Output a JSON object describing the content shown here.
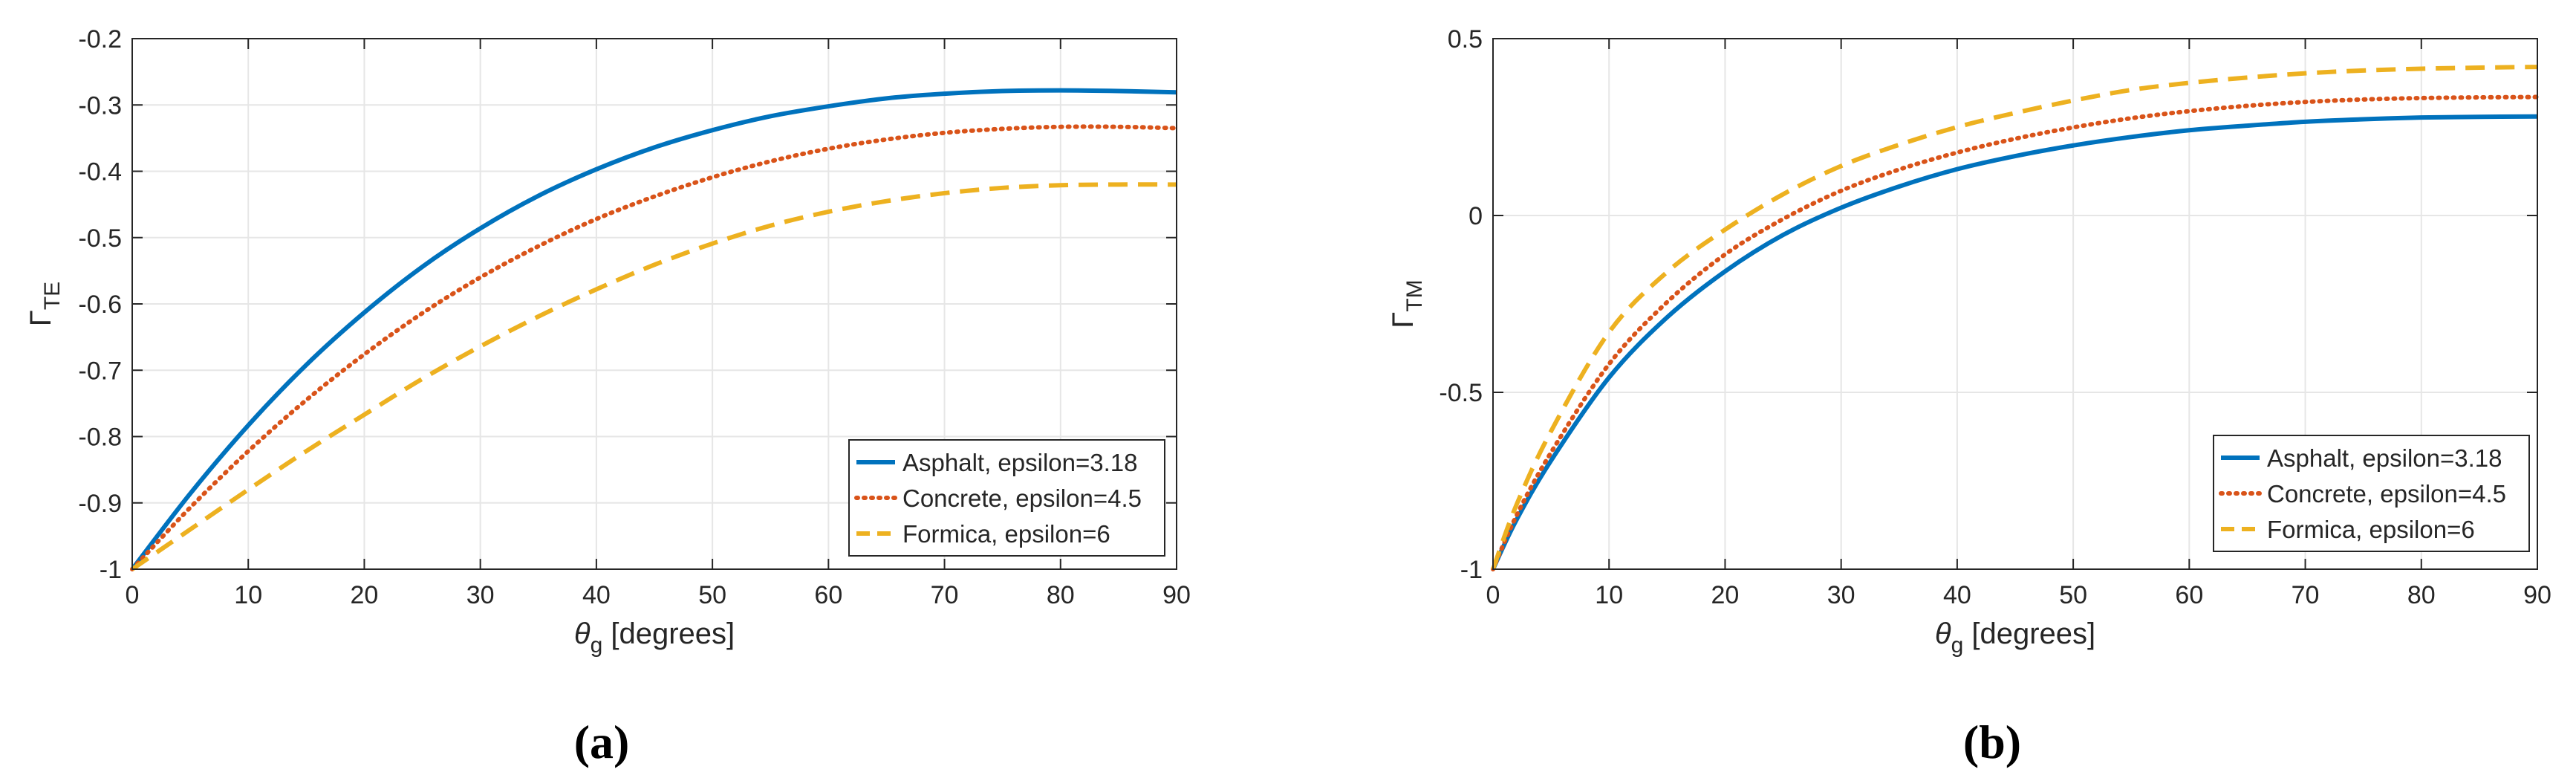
{
  "figure": {
    "panel_captions": [
      "(a)",
      "(b)"
    ]
  },
  "chart_data": [
    {
      "type": "line",
      "panel": "(a)",
      "title": "",
      "xlabel": {
        "base": "θ",
        "sub": "g",
        "suffix": " [degrees]"
      },
      "ylabel": {
        "base": "Γ",
        "sub": "TE"
      },
      "xlim": [
        0,
        90
      ],
      "ylim": [
        -1,
        -0.2
      ],
      "xticks": [
        0,
        10,
        20,
        30,
        40,
        50,
        60,
        70,
        80,
        90
      ],
      "yticks": [
        -1,
        -0.9,
        -0.8,
        -0.7,
        -0.6,
        -0.5,
        -0.4,
        -0.3,
        -0.2
      ],
      "xtick_labels": [
        "0",
        "10",
        "20",
        "30",
        "40",
        "50",
        "60",
        "70",
        "80",
        "90"
      ],
      "ytick_labels": [
        "-1",
        "-0.9",
        "-0.8",
        "-0.7",
        "-0.6",
        "-0.5",
        "-0.4",
        "-0.3",
        "-0.2"
      ],
      "grid": true,
      "legend_position": "bottom-right",
      "x": [
        0,
        5,
        10,
        15,
        20,
        25,
        30,
        35,
        40,
        45,
        50,
        55,
        60,
        65,
        70,
        75,
        80,
        85,
        90
      ],
      "series": [
        {
          "name": "Asphalt, epsilon=3.18",
          "color": "#0072BD",
          "style": "solid",
          "values": [
            -1.0,
            -0.886,
            -0.783,
            -0.692,
            -0.613,
            -0.544,
            -0.486,
            -0.437,
            -0.397,
            -0.364,
            -0.338,
            -0.317,
            -0.302,
            -0.29,
            -0.283,
            -0.279,
            -0.278,
            -0.279,
            -0.281
          ]
        },
        {
          "name": "Concrete, epsilon=4.5",
          "color": "#D95319",
          "style": "dotted",
          "values": [
            -1.0,
            -0.907,
            -0.822,
            -0.745,
            -0.676,
            -0.614,
            -0.56,
            -0.513,
            -0.472,
            -0.438,
            -0.409,
            -0.385,
            -0.366,
            -0.352,
            -0.342,
            -0.336,
            -0.333,
            -0.333,
            -0.335
          ]
        },
        {
          "name": "Formica, epsilon=6",
          "color": "#EDB120",
          "style": "dashed",
          "values": [
            -1.0,
            -0.94,
            -0.88,
            -0.822,
            -0.767,
            -0.713,
            -0.664,
            -0.619,
            -0.578,
            -0.541,
            -0.509,
            -0.482,
            -0.461,
            -0.445,
            -0.433,
            -0.425,
            -0.421,
            -0.42,
            -0.42
          ]
        }
      ]
    },
    {
      "type": "line",
      "panel": "(b)",
      "title": "",
      "xlabel": {
        "base": "θ",
        "sub": "g",
        "suffix": " [degrees]"
      },
      "ylabel": {
        "base": "Γ",
        "sub": "TM"
      },
      "xlim": [
        0,
        90
      ],
      "ylim": [
        -1,
        0.5
      ],
      "xticks": [
        0,
        10,
        20,
        30,
        40,
        50,
        60,
        70,
        80,
        90
      ],
      "yticks": [
        -1,
        -0.5,
        0,
        0.5
      ],
      "xtick_labels": [
        "0",
        "10",
        "20",
        "30",
        "40",
        "50",
        "60",
        "70",
        "80",
        "90"
      ],
      "ytick_labels": [
        "-1",
        "-0.5",
        "0",
        "0.5"
      ],
      "grid": true,
      "legend_position": "bottom-right",
      "x": [
        0,
        2,
        5,
        10,
        15,
        20,
        25,
        30,
        35,
        40,
        45,
        50,
        55,
        60,
        65,
        70,
        75,
        80,
        85,
        90
      ],
      "series": [
        {
          "name": "Asphalt, epsilon=3.18",
          "color": "#0072BD",
          "style": "solid",
          "values": [
            -1.0,
            -0.862,
            -0.693,
            -0.458,
            -0.288,
            -0.158,
            -0.055,
            0.022,
            0.082,
            0.131,
            0.168,
            0.198,
            0.222,
            0.241,
            0.254,
            0.265,
            0.272,
            0.277,
            0.279,
            0.28
          ]
        },
        {
          "name": "Concrete, epsilon=4.5",
          "color": "#D95319",
          "style": "dotted",
          "values": [
            -1.0,
            -0.85,
            -0.67,
            -0.42,
            -0.245,
            -0.11,
            -0.01,
            0.07,
            0.13,
            0.178,
            0.217,
            0.249,
            0.275,
            0.295,
            0.31,
            0.321,
            0.328,
            0.332,
            0.334,
            0.335
          ]
        },
        {
          "name": "Formica, epsilon=6",
          "color": "#EDB120",
          "style": "dashed",
          "values": [
            -1.0,
            -0.82,
            -0.61,
            -0.33,
            -0.16,
            -0.04,
            0.06,
            0.14,
            0.2,
            0.25,
            0.29,
            0.325,
            0.355,
            0.375,
            0.39,
            0.402,
            0.41,
            0.415,
            0.418,
            0.42
          ]
        }
      ]
    }
  ]
}
